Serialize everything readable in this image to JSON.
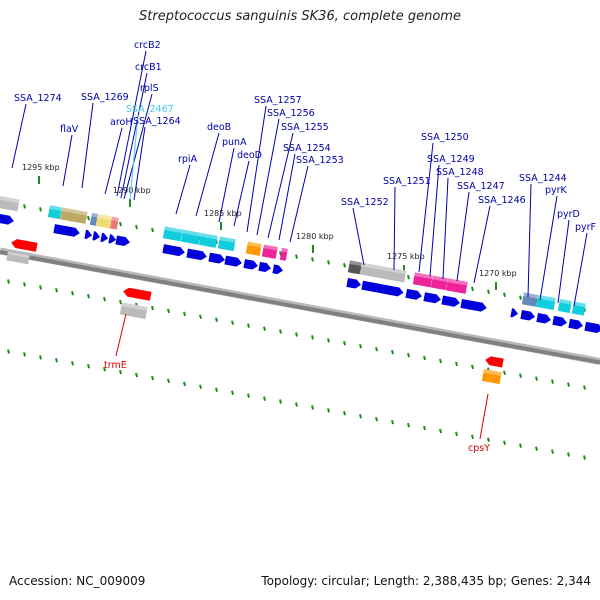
{
  "title": "Streptococcus sanguinis SK36, complete genome",
  "footer": {
    "accession": "Accession: NC_009009",
    "summary": "Topology: circular; Length: 2,388,435 bp; Genes: 2,344"
  },
  "colors": {
    "gene_label": "#0000aa",
    "highlight_label": "#44ccee",
    "rna_label": "#dd0000",
    "backbone": "#808080",
    "tick": "#228822",
    "cds": "#0000dd",
    "rna": "#ff0000",
    "hypothetical": "#bbbbbb",
    "cyan": "#11ccdd",
    "olive": "#bbaa66",
    "yellow": "#eedd77",
    "salmon": "#ee7777",
    "orange": "#ff9900",
    "magenta": "#ee2299",
    "steel": "#6688bb",
    "dark_gray": "#555555"
  },
  "scale_labels": [
    "1295 kbp",
    "1290 kbp",
    "1285 kbp",
    "1280 kbp",
    "1275 kbp",
    "1270 kbp"
  ],
  "upper_labels": [
    "SSA_1274",
    "flaV",
    "SSA_1269",
    "aroH",
    "crcB2",
    "crcB1",
    "rplS",
    "SSA_2467",
    "SSA_1264",
    "rpiA",
    "deoB",
    "punA",
    "deoD",
    "SSA_1257",
    "SSA_1256",
    "SSA_1255",
    "SSA_1254",
    "SSA_1253",
    "SSA_1252",
    "SSA_1251",
    "SSA_1250",
    "SSA_1249",
    "SSA_1248",
    "SSA_1247",
    "SSA_1246",
    "SSA_1244",
    "pyrK",
    "pyrD",
    "pyrF"
  ],
  "lower_labels": [
    "trmE",
    "cpsY"
  ]
}
